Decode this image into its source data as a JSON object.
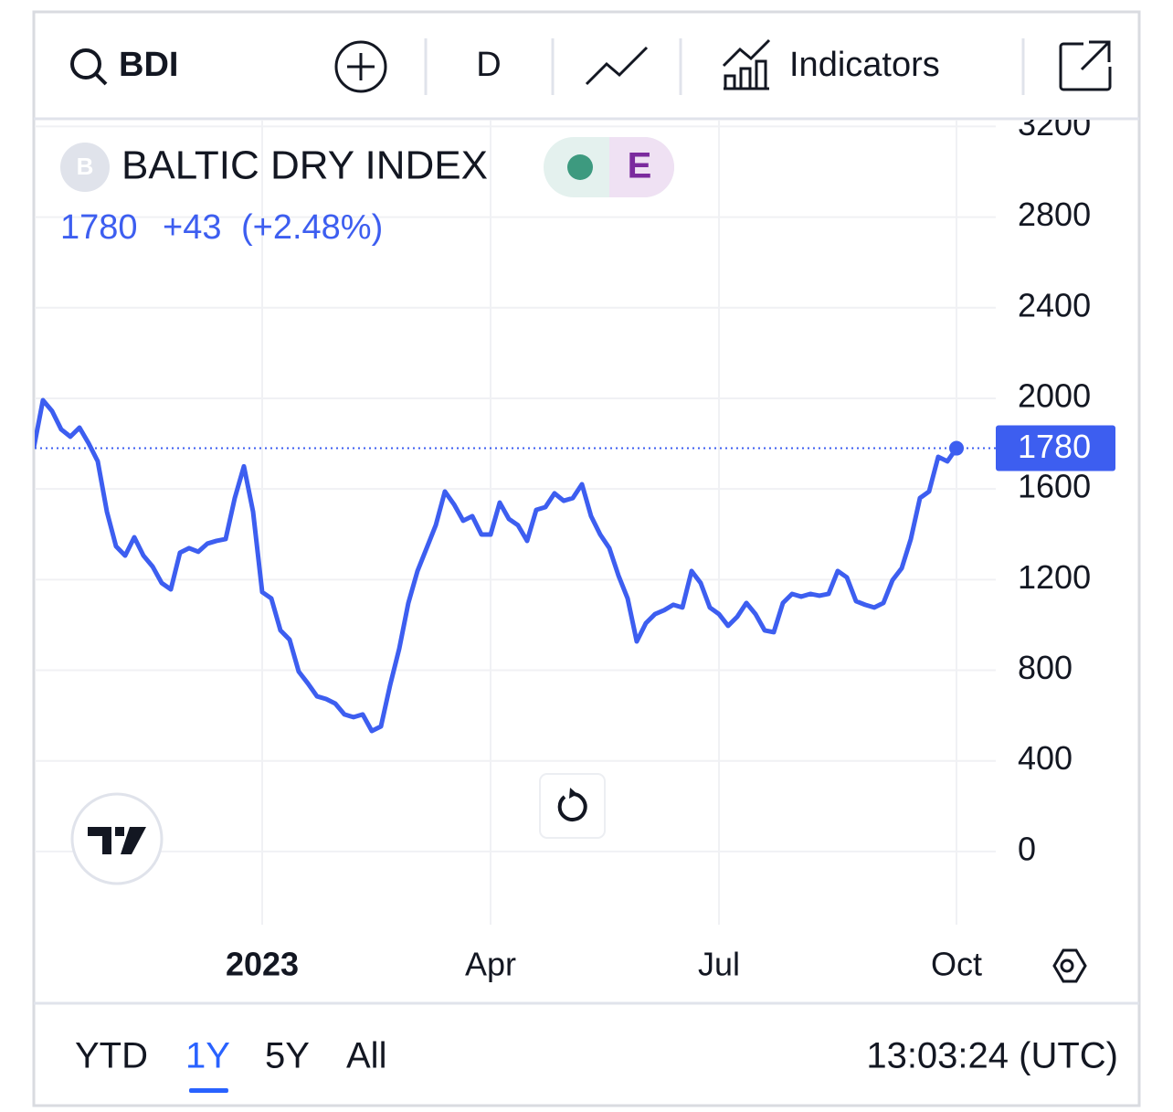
{
  "toolbar": {
    "symbol": "BDI",
    "interval": "D",
    "indicators": "Indicators"
  },
  "legend": {
    "logo_letter": "B",
    "badge": "E",
    "change": "+43",
    "change_pct": "(+2.48%)"
  },
  "chart_data": {
    "type": "line",
    "categories": [
      null,
      null,
      null,
      null,
      null,
      null,
      null,
      null,
      null,
      null,
      null,
      null,
      null,
      null,
      null,
      null,
      null,
      null,
      null,
      null,
      null,
      null,
      null,
      null,
      null,
      "2023",
      null,
      null,
      null,
      null,
      null,
      null,
      null,
      null,
      null,
      null,
      null,
      null,
      null,
      null,
      null,
      null,
      null,
      null,
      null,
      null,
      null,
      null,
      null,
      null,
      "Apr",
      null,
      null,
      null,
      null,
      null,
      null,
      null,
      null,
      null,
      null,
      null,
      null,
      null,
      null,
      null,
      null,
      null,
      null,
      null,
      null,
      null,
      null,
      null,
      null,
      "Jul",
      null,
      null,
      null,
      null,
      null,
      null,
      null,
      null,
      null,
      null,
      null,
      null,
      null,
      null,
      null,
      null,
      null,
      null,
      null,
      null,
      null,
      null,
      null,
      null,
      null,
      "Oct"
    ],
    "series": [
      {
        "name": "BALTIC DRY INDEX",
        "color": "#3d5ef0",
        "values": [
          1782,
          1992,
          1944,
          1863,
          1831,
          1871,
          1802,
          1722,
          1500,
          1347,
          1306,
          1387,
          1306,
          1258,
          1185,
          1157,
          1319,
          1339,
          1323,
          1359,
          1371,
          1379,
          1560,
          1700,
          1500,
          1145,
          1117,
          976,
          935,
          794,
          742,
          685,
          673,
          653,
          605,
          593,
          605,
          532,
          552,
          734,
          895,
          1097,
          1238,
          1339,
          1440,
          1589,
          1532,
          1460,
          1480,
          1399,
          1399,
          1540,
          1468,
          1440,
          1371,
          1508,
          1520,
          1581,
          1548,
          1560,
          1621,
          1480,
          1399,
          1339,
          1218,
          1117,
          927,
          1008,
          1048,
          1065,
          1089,
          1077,
          1238,
          1185,
          1077,
          1048,
          996,
          1036,
          1097,
          1048,
          976,
          968,
          1097,
          1137,
          1125,
          1137,
          1129,
          1137,
          1238,
          1210,
          1105,
          1089,
          1077,
          1097,
          1198,
          1250,
          1379,
          1560,
          1589,
          1742,
          1722,
          1780
        ]
      }
    ],
    "ylim": [
      -323,
      3234
    ],
    "yticks": [
      0,
      400,
      800,
      1200,
      1600,
      2000,
      2400,
      2800,
      3200
    ],
    "grid": true
  },
  "range_buttons": [
    "YTD",
    "1Y",
    "5Y",
    "All"
  ],
  "selected_range": 1,
  "clock": "13:03:24 (UTC)"
}
